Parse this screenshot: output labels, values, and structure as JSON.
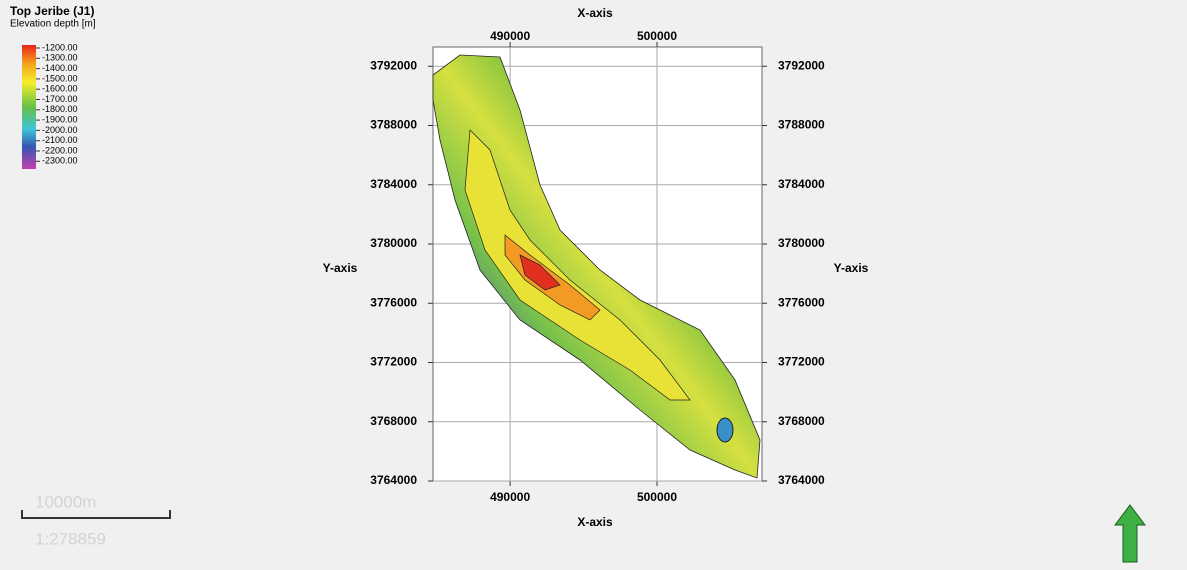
{
  "map": {
    "title": "Top Jeribe (J1)",
    "subtitle": "Elevation depth [m]",
    "legend": {
      "labels": [
        "-1200.00",
        "-1300.00",
        "-1400.00",
        "-1500.00",
        "-1600.00",
        "-1700.00",
        "-1800.00",
        "-1900.00",
        "-2000.00",
        "-2100.00",
        "-2200.00",
        "-2300.00"
      ]
    },
    "x_title": "X-axis",
    "y_title": "Y-axis",
    "xlim": [
      484750,
      507150
    ],
    "ylim": [
      3764000,
      3793300
    ],
    "xticks": [
      490000,
      500000
    ],
    "yticks": [
      3764000,
      3768000,
      3772000,
      3776000,
      3780000,
      3784000,
      3788000,
      3792000
    ],
    "scale_bar": {
      "label": "10000m",
      "ratio": "1:278859"
    }
  }
}
